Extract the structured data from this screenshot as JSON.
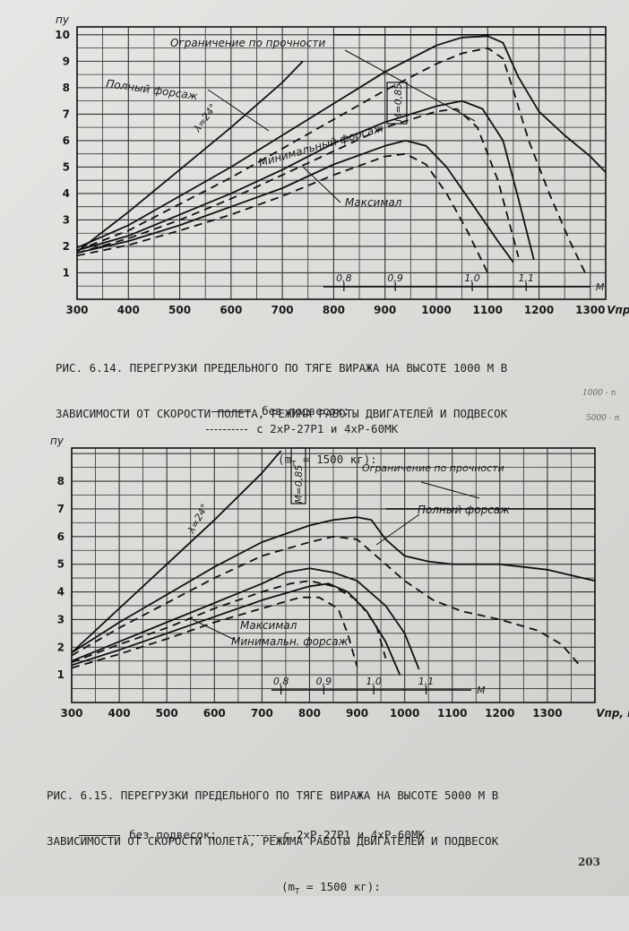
{
  "fig1": {
    "caption": [
      "РИС. 6.14. ПЕРЕГРУЗКИ ПРЕДЕЛЬНОГО ПО ТЯГЕ ВИРАЖА НА ВЫСОТЕ 1000 М В",
      "ЗАВИСИМОСТИ ОТ СКОРОСТИ ПОЛЕТА, РЕЖИМА РАБОТЫ ДВИГАТЕЛЕЙ И ПОДВЕСОК",
      "(m",
      "= 1500 кг):"
    ],
    "legend_solid": "без подвесок;",
    "legend_dashed": "с 2хР-27Р1 и 4хР-60МК"
  },
  "fig2": {
    "caption": [
      "РИС. 6.15. ПЕРЕГРУЗКИ ПРЕДЕЛЬНОГО ПО ТЯГЕ ВИРАЖА НА ВЫСОТЕ 5000 М В",
      "ЗАВИСИМОСТИ ОТ СКОРОСТИ ПОЛЕТА, РЕЖИМА РАБОТЫ ДВИГАТЕЛЕЙ И ПОДВЕСОК",
      "(m",
      "= 1500 кг):"
    ],
    "legend_solid": "без подвесок;",
    "legend_dashed": "с 2хР-27Р1 и 4хР-60МК"
  },
  "page_number": "203",
  "margin_notes": [
    "1000 - п",
    "5000 - п"
  ],
  "chart_data": [
    {
      "type": "line",
      "ylabel": "пу",
      "xlabel": "Vпр, км/ч",
      "xticks": [
        300,
        400,
        500,
        600,
        700,
        800,
        900,
        1000,
        1100,
        1200,
        1300
      ],
      "yticks": [
        1,
        2,
        3,
        4,
        5,
        6,
        7,
        8,
        9,
        10
      ],
      "xlim": [
        300,
        1330
      ],
      "ylim": [
        0,
        10.3
      ],
      "mach_ticks": [
        "0,8",
        "0,9",
        "1,0",
        "1,1"
      ],
      "mach_label": "М",
      "annotations": [
        "Ограничение по прочности",
        "Полный форсаж",
        "λ=24°",
        "Минимальный форсаж",
        "Максимал",
        "М=0,85"
      ],
      "series": [
        {
          "name": "Полный форсаж",
          "style": "solid",
          "x": [
            300,
            400,
            500,
            600,
            700,
            800,
            900,
            1000,
            1050,
            1100,
            1130,
            1160,
            1200,
            1250,
            1300,
            1330
          ],
          "y": [
            1.95,
            2.8,
            3.9,
            5.0,
            6.2,
            7.4,
            8.6,
            9.6,
            9.9,
            9.95,
            9.7,
            8.4,
            7.1,
            6.2,
            5.4,
            4.8
          ]
        },
        {
          "name": "Полный форсаж",
          "style": "dashed",
          "x": [
            300,
            400,
            500,
            600,
            700,
            800,
            900,
            1000,
            1050,
            1100,
            1130,
            1150,
            1180,
            1220,
            1260,
            1290
          ],
          "y": [
            1.85,
            2.6,
            3.6,
            4.6,
            5.7,
            6.8,
            7.9,
            8.9,
            9.3,
            9.5,
            9.1,
            7.9,
            6.0,
            4.0,
            2.2,
            1.0
          ]
        },
        {
          "name": "Минимальный форсаж",
          "style": "solid",
          "x": [
            300,
            400,
            500,
            600,
            700,
            800,
            900,
            1000,
            1050,
            1090,
            1130,
            1160,
            1190
          ],
          "y": [
            1.85,
            2.4,
            3.2,
            4.0,
            4.9,
            5.9,
            6.7,
            7.3,
            7.5,
            7.2,
            6.0,
            3.8,
            1.5
          ]
        },
        {
          "name": "Минимальный форсаж",
          "style": "dashed",
          "x": [
            300,
            400,
            500,
            600,
            700,
            800,
            900,
            1000,
            1040,
            1080,
            1120,
            1160
          ],
          "y": [
            1.75,
            2.3,
            3.0,
            3.8,
            4.7,
            5.6,
            6.5,
            7.1,
            7.2,
            6.5,
            4.5,
            1.6
          ]
        },
        {
          "name": "Максимал",
          "style": "solid",
          "x": [
            300,
            400,
            500,
            600,
            700,
            800,
            900,
            940,
            980,
            1020,
            1070,
            1120,
            1150
          ],
          "y": [
            1.75,
            2.2,
            2.8,
            3.5,
            4.2,
            5.1,
            5.8,
            6.0,
            5.8,
            5.0,
            3.6,
            2.2,
            1.4
          ]
        },
        {
          "name": "Максимал",
          "style": "dashed",
          "x": [
            300,
            400,
            500,
            600,
            700,
            800,
            900,
            940,
            980,
            1020,
            1060,
            1100
          ],
          "y": [
            1.65,
            2.05,
            2.6,
            3.2,
            3.9,
            4.7,
            5.4,
            5.5,
            5.1,
            4.0,
            2.6,
            1.0
          ]
        },
        {
          "name": "λ=24°",
          "style": "solid",
          "x": [
            300,
            400,
            500,
            600,
            700,
            740
          ],
          "y": [
            1.8,
            3.3,
            4.9,
            6.5,
            8.2,
            9.0
          ]
        }
      ]
    },
    {
      "type": "line",
      "ylabel": "пу",
      "xlabel": "Vпр, км/ч",
      "xticks": [
        300,
        400,
        500,
        600,
        700,
        800,
        900,
        1000,
        1100,
        1200,
        1300
      ],
      "yticks": [
        1,
        2,
        3,
        4,
        5,
        6,
        7,
        8
      ],
      "xlim": [
        300,
        1400
      ],
      "ylim": [
        0,
        9.2
      ],
      "mach_ticks": [
        "0,8",
        "0,9",
        "1,0",
        "1,1"
      ],
      "mach_label": "М",
      "annotations": [
        "Ограничение по прочности",
        "Полный форсаж",
        "λ=24°",
        "М=0,85",
        "Максимал",
        "Минимальн. форсаж"
      ],
      "series": [
        {
          "name": "Полный форсаж",
          "style": "solid",
          "x": [
            300,
            400,
            500,
            600,
            700,
            800,
            850,
            900,
            930,
            960,
            1000,
            1050,
            1100,
            1200,
            1300,
            1400
          ],
          "y": [
            1.8,
            2.9,
            3.9,
            4.9,
            5.8,
            6.4,
            6.6,
            6.7,
            6.6,
            5.9,
            5.3,
            5.1,
            5.0,
            5.0,
            4.8,
            4.4
          ]
        },
        {
          "name": "Полный форсаж",
          "style": "dashed",
          "x": [
            300,
            400,
            500,
            600,
            700,
            800,
            850,
            900,
            940,
            1000,
            1060,
            1120,
            1200,
            1280,
            1330,
            1370
          ],
          "y": [
            1.7,
            2.7,
            3.6,
            4.5,
            5.3,
            5.8,
            6.0,
            5.9,
            5.3,
            4.4,
            3.7,
            3.3,
            3.0,
            2.6,
            2.1,
            1.3
          ]
        },
        {
          "name": "Минимальн. форсаж",
          "style": "solid",
          "x": [
            300,
            400,
            500,
            600,
            700,
            750,
            800,
            850,
            900,
            960,
            1000,
            1030
          ],
          "y": [
            1.5,
            2.2,
            2.9,
            3.6,
            4.3,
            4.7,
            4.85,
            4.7,
            4.4,
            3.5,
            2.5,
            1.2
          ]
        },
        {
          "name": "Минимальн. форсаж",
          "style": "dashed",
          "x": [
            300,
            400,
            500,
            600,
            700,
            760,
            800,
            850,
            900,
            940,
            960
          ],
          "y": [
            1.45,
            2.1,
            2.7,
            3.4,
            4.0,
            4.3,
            4.4,
            4.2,
            3.7,
            2.8,
            1.6
          ]
        },
        {
          "name": "Максимал",
          "style": "solid",
          "x": [
            300,
            400,
            500,
            600,
            700,
            800,
            840,
            880,
            920,
            960,
            990
          ],
          "y": [
            1.35,
            1.9,
            2.5,
            3.1,
            3.7,
            4.2,
            4.3,
            4.0,
            3.3,
            2.2,
            1.0
          ]
        },
        {
          "name": "Максимал",
          "style": "dashed",
          "x": [
            300,
            400,
            500,
            600,
            700,
            780,
            820,
            860,
            880,
            900
          ],
          "y": [
            1.25,
            1.75,
            2.3,
            2.9,
            3.4,
            3.8,
            3.8,
            3.4,
            2.5,
            1.3
          ]
        },
        {
          "name": "λ=24°",
          "style": "solid",
          "x": [
            300,
            400,
            500,
            600,
            700,
            740
          ],
          "y": [
            1.8,
            3.4,
            5.0,
            6.6,
            8.3,
            9.1
          ]
        }
      ]
    }
  ]
}
